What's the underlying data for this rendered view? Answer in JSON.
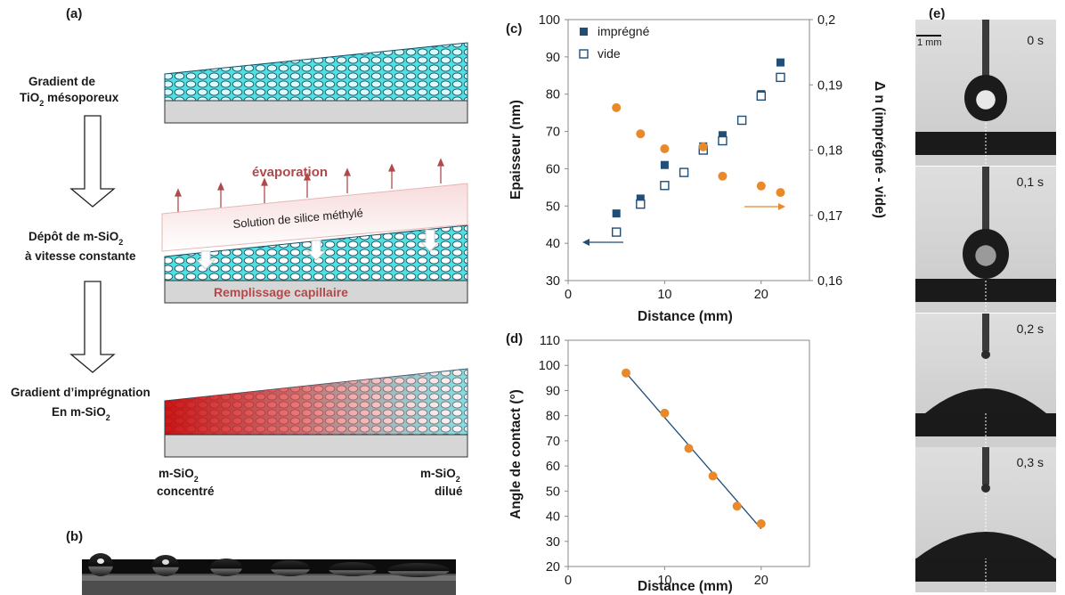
{
  "panel_a": {
    "label": "(a)",
    "step1_line1": "Gradient de",
    "step1_line2_prefix": "TiO",
    "step1_line2_sub": "2",
    "step1_line2_suffix": " mésoporeux",
    "step2_line1_prefix": "Dépôt de m-SiO",
    "step2_line1_sub": "2",
    "step2_line2": "à vitesse constante",
    "step3_line1": "Gradient d’imprégnation",
    "step3_line2_prefix": "En m-SiO",
    "step3_line2_sub": "2",
    "evaporation": "évaporation",
    "solution": "Solution de silice méthylé",
    "capillary": "Remplissage capillaire",
    "left_end_prefix": "m-SiO",
    "left_end_sub": "2",
    "left_end_line2": "concentré",
    "right_end_prefix": "m-SiO",
    "right_end_sub": "2",
    "right_end_line2": "dilué",
    "colors": {
      "tio2": "#4fe0e0",
      "substrate": "#d6d6d6",
      "filled": "#d41616",
      "diluted": "#f4c4c4",
      "evaporation": "#b04a4a"
    }
  },
  "panel_b": {
    "label": "(b)"
  },
  "panel_c": {
    "label": "(c)"
  },
  "panel_d": {
    "label": "(d)"
  },
  "panel_e": {
    "label": "(e)",
    "scale_bar": "1 mm",
    "frames": [
      {
        "time": "0 s"
      },
      {
        "time": "0,1 s"
      },
      {
        "time": "0,2 s"
      },
      {
        "time": "0,3 s"
      }
    ]
  },
  "chart_data": [
    {
      "type": "scatter",
      "xlabel": "Distance (mm)",
      "ylabel": "Epaisseur (nm)",
      "y2label": "Δ n  (imprégné - vide)",
      "xlim": [
        0,
        25
      ],
      "ylim": [
        30,
        100
      ],
      "y2lim": [
        0.16,
        0.2
      ],
      "x_ticks": [
        "0",
        "10",
        "20"
      ],
      "y_ticks": [
        "30",
        "40",
        "50",
        "60",
        "70",
        "80",
        "90",
        "100"
      ],
      "y2_ticks": [
        "0,16",
        "0,17",
        "0,18",
        "0,19",
        "0,2"
      ],
      "legend_position": "top-left",
      "series": [
        {
          "name": "imprégné",
          "marker": "filled-square",
          "color": "#1f4e79",
          "axis": "left",
          "x": [
            5,
            7.5,
            10,
            14,
            16,
            20,
            22
          ],
          "y": [
            48,
            52,
            61,
            66,
            69,
            80,
            88.5
          ]
        },
        {
          "name": "vide",
          "marker": "open-square",
          "color": "#1f4e79",
          "axis": "left",
          "x": [
            5,
            7.5,
            10,
            12,
            14,
            16,
            18,
            20,
            22
          ],
          "y": [
            43,
            50.5,
            55.5,
            59,
            65,
            67.5,
            73,
            79.5,
            84.5
          ]
        },
        {
          "marker": "circle",
          "color": "#e8892b",
          "axis": "right",
          "x": [
            5,
            7.5,
            10,
            14,
            16,
            20,
            22
          ],
          "y": [
            0.1865,
            0.1825,
            0.1802,
            0.1805,
            0.176,
            0.1745,
            0.1735
          ]
        }
      ]
    },
    {
      "type": "scatter",
      "xlabel": "Distance (mm)",
      "ylabel": "Angle de contact (°)",
      "xlim": [
        0,
        25
      ],
      "ylim": [
        20,
        110
      ],
      "x_ticks": [
        "0",
        "10",
        "20"
      ],
      "y_ticks": [
        "20",
        "30",
        "40",
        "50",
        "60",
        "70",
        "80",
        "90",
        "100",
        "110"
      ],
      "series": [
        {
          "marker": "circle",
          "color": "#e8892b",
          "x": [
            6,
            10,
            12.5,
            15,
            17.5,
            20
          ],
          "y": [
            97,
            81,
            67,
            56,
            44,
            37
          ]
        }
      ],
      "fit_line": {
        "color": "#1f4e79",
        "x": [
          6,
          20
        ],
        "y": [
          97,
          35
        ]
      }
    }
  ]
}
